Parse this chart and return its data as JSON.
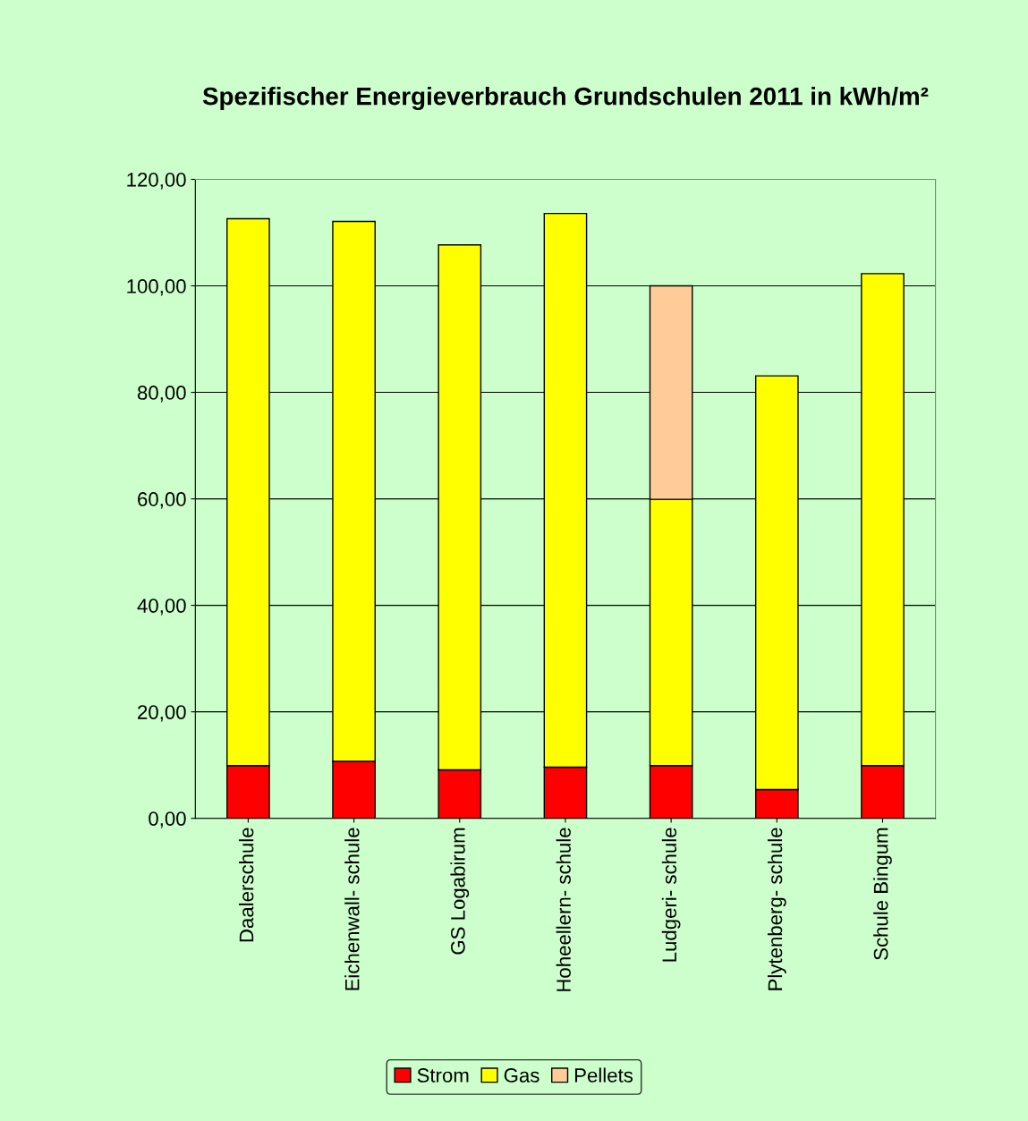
{
  "chart_data": {
    "type": "bar",
    "title": "Spezifischer Energieverbrauch Grundschulen 2011 in kWh/m²",
    "categories": [
      "Daalerschule",
      "Eichenwall- schule",
      "GS Logabirum",
      "Hoheellern- schule",
      "Ludgeri- schule",
      "Plytenberg- schule",
      "Schule Bingum"
    ],
    "stacked": true,
    "series": [
      {
        "name": "Strom",
        "color": "#ff0000",
        "values": [
          9.9,
          10.7,
          9.1,
          9.6,
          9.9,
          5.4,
          9.9
        ]
      },
      {
        "name": "Gas",
        "color": "#ffff00",
        "values": [
          102.7,
          101.4,
          98.6,
          104.0,
          50.0,
          77.7,
          92.4
        ]
      },
      {
        "name": "Pellets",
        "color": "#ffcc99",
        "values": [
          null,
          null,
          null,
          null,
          40.1,
          null,
          null
        ]
      }
    ],
    "ylim": [
      0,
      120
    ],
    "yticks": [
      {
        "value": 0,
        "label": "0,00"
      },
      {
        "value": 20,
        "label": "20,00"
      },
      {
        "value": 40,
        "label": "40,00"
      },
      {
        "value": 60,
        "label": "60,00"
      },
      {
        "value": 80,
        "label": "80,00"
      },
      {
        "value": 100,
        "label": "100,00"
      },
      {
        "value": 120,
        "label": "120,00"
      }
    ],
    "grid": "y",
    "legend": "bottom"
  }
}
